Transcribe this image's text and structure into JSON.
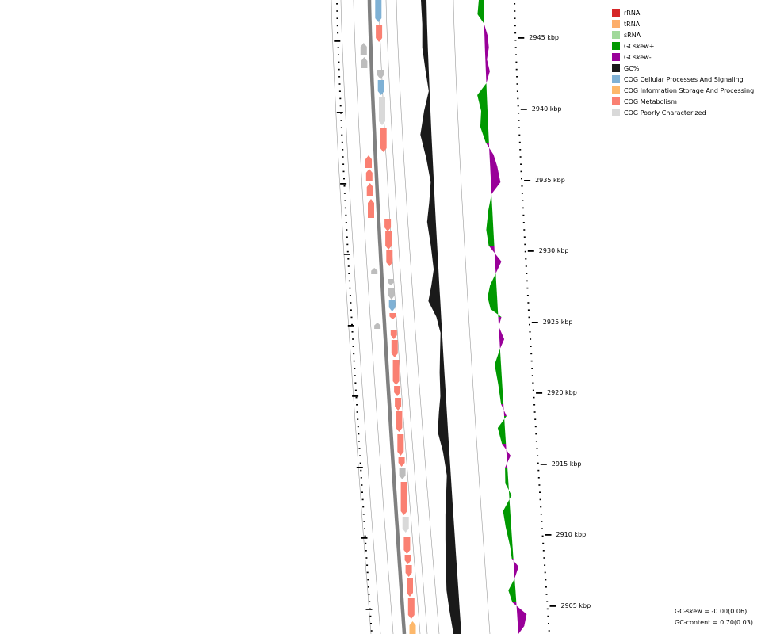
{
  "legend": [
    {
      "label": "rRNA",
      "color": "#d62728"
    },
    {
      "label": "tRNA",
      "color": "#fdae6b"
    },
    {
      "label": "sRNA",
      "color": "#a1d99b"
    },
    {
      "label": "GCskew+",
      "color": "#009900"
    },
    {
      "label": "GCskew-",
      "color": "#990099"
    },
    {
      "label": "GC%",
      "color": "#1a1a1a"
    },
    {
      "label": "COG Cellular Processes And Signaling",
      "color": "#7fb1d5"
    },
    {
      "label": "COG Information Storage And Processing",
      "color": "#fdb86b"
    },
    {
      "label": "COG Metabolism",
      "color": "#fa8072"
    },
    {
      "label": "COG Poorly Characterized",
      "color": "#d9d9d9"
    }
  ],
  "ruler": {
    "labels": [
      "2945 kbp",
      "2940 kbp",
      "2935 kbp",
      "2930 kbp",
      "2925 kbp",
      "2920 kbp",
      "2915 kbp",
      "2910 kbp",
      "2905 kbp"
    ]
  },
  "stats": {
    "gc_skew": "GC-skew = -0.00(0.06)",
    "gc_content": "GC-content = 0.70(0.03)"
  },
  "colors": {
    "backbone": "#808080",
    "guide": "#999999",
    "gc": "#1a1a1a",
    "skew_pos": "#009900",
    "skew_neg": "#990099",
    "unknown_feature": "#bdbdbd"
  }
}
